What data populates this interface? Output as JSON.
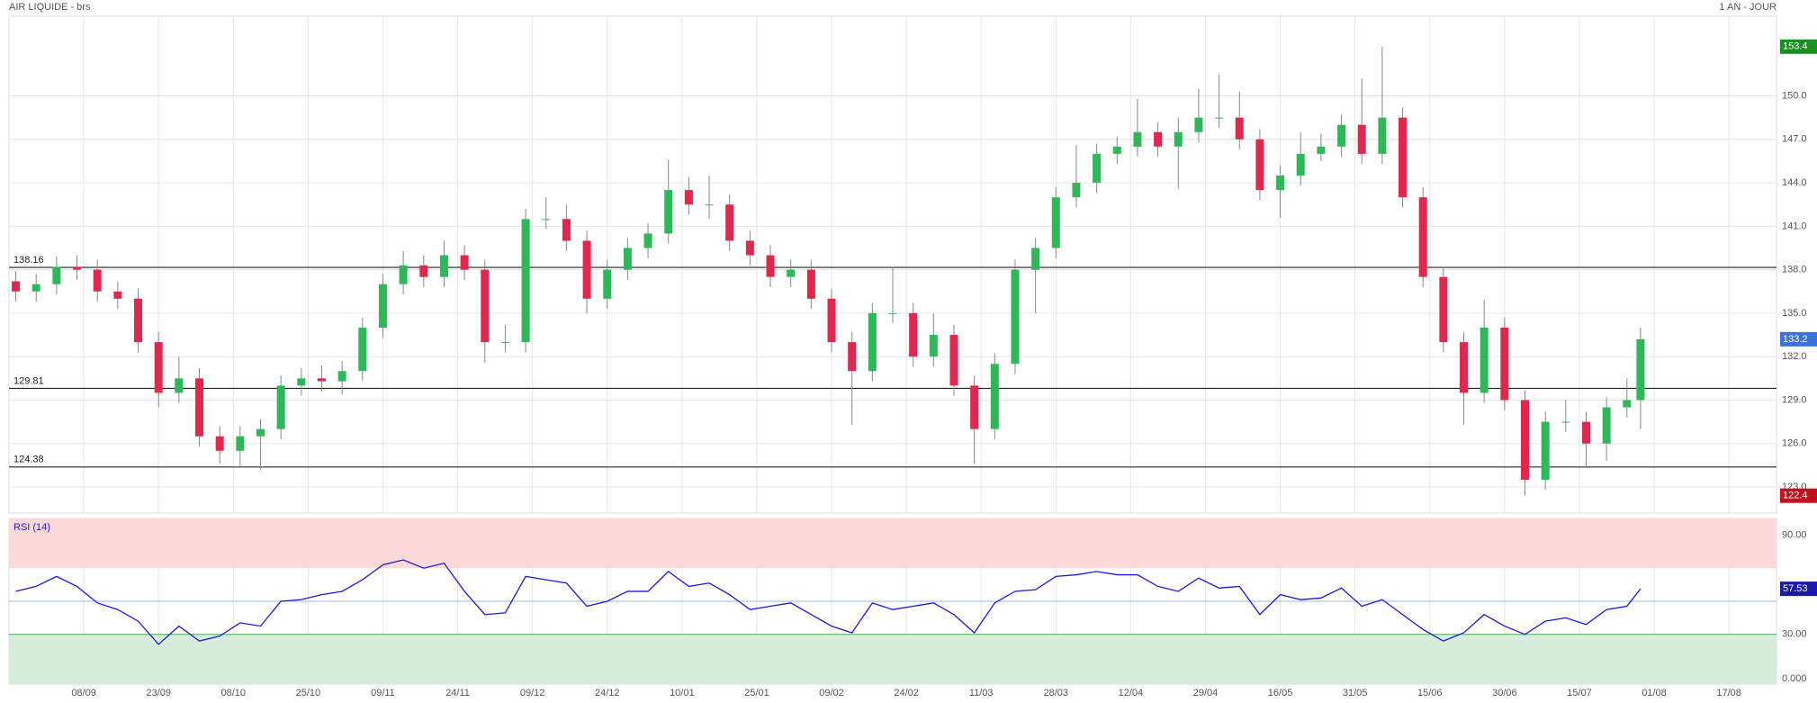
{
  "header": {
    "title": "AIR LIQUIDE - brs",
    "period": "1 AN - JOUR"
  },
  "chart_data": [
    {
      "type": "candlestick",
      "up_color": "#2fb85a",
      "down_color": "#e0284f",
      "high_tag_color": "#16921f",
      "low_tag_color": "#c4101e",
      "last_tag_color": "#3b73dd",
      "x": [
        0,
        3,
        6,
        9,
        12,
        15,
        18,
        21,
        24,
        27,
        30,
        33,
        36,
        39,
        42,
        45,
        48,
        51,
        54,
        57,
        60,
        63,
        66,
        69,
        72,
        75,
        78,
        81,
        84,
        87,
        90,
        93,
        96,
        99,
        102,
        105,
        108,
        111,
        114,
        117,
        120,
        123,
        126,
        129,
        132,
        135,
        138,
        141,
        144,
        147,
        150,
        153,
        156,
        159,
        162,
        165,
        168,
        171,
        174,
        177,
        180,
        183,
        186,
        189,
        192,
        195,
        198,
        201,
        204,
        207,
        210,
        213,
        216,
        219,
        222,
        225,
        228,
        231,
        234,
        237,
        239
      ],
      "open": [
        137.2,
        136.5,
        137,
        138.2,
        138,
        136.5,
        136,
        133,
        129.5,
        130.5,
        126.5,
        125.5,
        126.5,
        127,
        130,
        130.5,
        130.3,
        131,
        134,
        137,
        138.3,
        137.5,
        139,
        138,
        133,
        133,
        141.5,
        141.5,
        140,
        136,
        138,
        139.5,
        140.5,
        143.5,
        142.5,
        142.5,
        140,
        139,
        137.5,
        138,
        136,
        133,
        131,
        135,
        135,
        132,
        133.5,
        130,
        127,
        131.5,
        138,
        139.5,
        143,
        144,
        146,
        146.5,
        147.5,
        146.5,
        147.5,
        148.5,
        148.5,
        147,
        143.5,
        144.5,
        146,
        146.5,
        148,
        146,
        148.5,
        143,
        137.5,
        133,
        129.5,
        134,
        129,
        123.5,
        127.5,
        127.5,
        126,
        128.5,
        129
      ],
      "high": [
        137.9,
        137.7,
        138.9,
        139,
        138.7,
        137.2,
        136.7,
        133.7,
        132,
        131.2,
        127.2,
        127.2,
        127.7,
        130.7,
        131.2,
        131.4,
        131.7,
        134.7,
        137.7,
        139.3,
        139,
        140,
        139.7,
        138.7,
        134.2,
        142.2,
        143,
        142.5,
        140.7,
        138.7,
        140.2,
        141.2,
        145.6,
        144.4,
        144.5,
        143.2,
        140.7,
        139.7,
        138.7,
        138.7,
        136.7,
        133.7,
        135.7,
        138.2,
        135.7,
        135,
        134.2,
        130.7,
        132.2,
        138.7,
        140.2,
        143.7,
        146.6,
        146.7,
        147.2,
        149.8,
        148.2,
        148.5,
        150.5,
        151.5,
        150.3,
        147.7,
        145.2,
        147.5,
        147.4,
        148.7,
        151.2,
        153.4,
        149.2,
        143.7,
        138.2,
        133.7,
        135.9,
        134.7,
        129.7,
        128.2,
        129,
        128.2,
        129.2,
        130.5,
        134
      ],
      "low": [
        135.8,
        135.8,
        136.3,
        137.3,
        135.8,
        135.3,
        132.3,
        128.5,
        128.8,
        125.8,
        124.6,
        124.3,
        124.2,
        126.3,
        129.3,
        129.6,
        129.4,
        130.3,
        133.3,
        136.3,
        136.8,
        136.8,
        137.3,
        131.6,
        132.3,
        132.3,
        140.8,
        139.3,
        135,
        135.3,
        137.3,
        138.8,
        139.8,
        141.8,
        141.5,
        139.3,
        138.3,
        136.8,
        136.8,
        135.3,
        132.3,
        127.3,
        130.3,
        134.3,
        131.3,
        131.3,
        129.3,
        124.6,
        126.3,
        130.8,
        135,
        138.8,
        142.3,
        143.3,
        145.3,
        145.8,
        145.8,
        143.6,
        146.8,
        147.8,
        146.3,
        142.8,
        141.6,
        143.8,
        145.5,
        145.8,
        145.3,
        145.3,
        142.3,
        136.8,
        132.3,
        127.3,
        128.8,
        128.3,
        122.4,
        122.8,
        126.8,
        124.3,
        124.8,
        127.8,
        127
      ],
      "close": [
        136.5,
        137,
        138.2,
        138,
        136.5,
        136,
        133,
        129.5,
        130.5,
        126.5,
        125.5,
        126.5,
        127,
        130,
        130.5,
        130.3,
        131,
        134,
        137,
        138.3,
        137.5,
        139,
        138,
        133,
        133,
        141.5,
        141.5,
        140,
        136,
        138,
        139.5,
        140.5,
        143.5,
        142.5,
        142.5,
        140,
        139,
        137.5,
        138,
        136,
        133,
        131,
        135,
        135,
        132,
        133.5,
        130,
        127,
        131.5,
        138,
        139.5,
        143,
        144,
        146,
        146.5,
        147.5,
        146.5,
        147.5,
        148.5,
        148.5,
        147,
        143.5,
        144.5,
        146,
        146.5,
        148,
        146,
        148.5,
        143,
        137.5,
        133,
        129.5,
        134,
        129,
        123.5,
        127.5,
        127.5,
        126,
        128.5,
        129,
        133.2
      ],
      "levels": [
        138.16,
        129.81,
        124.38
      ],
      "xlim": [
        -1,
        259
      ],
      "xticks": [
        {
          "value": 10,
          "label": "08/09"
        },
        {
          "value": 21,
          "label": "23/09"
        },
        {
          "value": 32,
          "label": "08/10"
        },
        {
          "value": 43,
          "label": "25/10"
        },
        {
          "value": 54,
          "label": "09/11"
        },
        {
          "value": 65,
          "label": "24/11"
        },
        {
          "value": 76,
          "label": "09/12"
        },
        {
          "value": 87,
          "label": "24/12"
        },
        {
          "value": 98,
          "label": "10/01"
        },
        {
          "value": 109,
          "label": "25/01"
        },
        {
          "value": 120,
          "label": "09/02"
        },
        {
          "value": 131,
          "label": "24/02"
        },
        {
          "value": 142,
          "label": "11/03"
        },
        {
          "value": 153,
          "label": "28/03"
        },
        {
          "value": 164,
          "label": "12/04"
        },
        {
          "value": 175,
          "label": "29/04"
        },
        {
          "value": 186,
          "label": "16/05"
        },
        {
          "value": 197,
          "label": "31/05"
        },
        {
          "value": 208,
          "label": "15/06"
        },
        {
          "value": 219,
          "label": "30/06"
        },
        {
          "value": 230,
          "label": "15/07"
        },
        {
          "value": 241,
          "label": "01/08"
        },
        {
          "value": 252,
          "label": "17/08"
        }
      ],
      "ylim": [
        121.2,
        155.5
      ],
      "yticks": [
        {
          "value": 123,
          "label": "123.0"
        },
        {
          "value": 126,
          "label": "126.0"
        },
        {
          "value": 129,
          "label": "129.0"
        },
        {
          "value": 132,
          "label": "132.0"
        },
        {
          "value": 135,
          "label": "135.0"
        },
        {
          "value": 138,
          "label": "138.0"
        },
        {
          "value": 141,
          "label": "141.0"
        },
        {
          "value": 144,
          "label": "144.0"
        },
        {
          "value": 147,
          "label": "147.0"
        },
        {
          "value": 150,
          "label": "150.0"
        }
      ],
      "grid": true
    },
    {
      "type": "line",
      "title": "RSI (14)",
      "color": "#1a1ad6",
      "last_tag_color": "#1a1aa8",
      "overbought": 70,
      "oversold": 30,
      "mid": 50,
      "overbought_color": "#fdd9da",
      "oversold_color": "#d8eedc",
      "x": [
        0,
        3,
        6,
        9,
        12,
        15,
        18,
        21,
        24,
        27,
        30,
        33,
        36,
        39,
        42,
        45,
        48,
        51,
        54,
        57,
        60,
        63,
        66,
        69,
        72,
        75,
        78,
        81,
        84,
        87,
        90,
        93,
        96,
        99,
        102,
        105,
        108,
        111,
        114,
        117,
        120,
        123,
        126,
        129,
        132,
        135,
        138,
        141,
        144,
        147,
        150,
        153,
        156,
        159,
        162,
        165,
        168,
        171,
        174,
        177,
        180,
        183,
        186,
        189,
        192,
        195,
        198,
        201,
        204,
        207,
        210,
        213,
        216,
        219,
        222,
        225,
        228,
        231,
        234,
        237,
        239
      ],
      "values": [
        56,
        59,
        65,
        59,
        49,
        45,
        38,
        24,
        35,
        26,
        29,
        37,
        35,
        50,
        51,
        54,
        56,
        63,
        72,
        75,
        70,
        73,
        56,
        42,
        43,
        65,
        63,
        61,
        47,
        50,
        56,
        56,
        68,
        59,
        61,
        54,
        45,
        47,
        49,
        42,
        35,
        31,
        49,
        45,
        47,
        49,
        42,
        31,
        49,
        56,
        57,
        65,
        66,
        68,
        66,
        66,
        59,
        56,
        64,
        58,
        59,
        42,
        54,
        51,
        52,
        58,
        47,
        51,
        42,
        33,
        26,
        31,
        42,
        35,
        30,
        38,
        40,
        36,
        45,
        47,
        57.53
      ],
      "xlim": [
        -1,
        259
      ],
      "ylim": [
        0,
        100
      ],
      "yticks": [
        {
          "value": 0,
          "label": "0.000"
        },
        {
          "value": 30,
          "label": "30.00"
        },
        {
          "value": 90,
          "label": "90.00"
        }
      ],
      "grid": true
    }
  ]
}
